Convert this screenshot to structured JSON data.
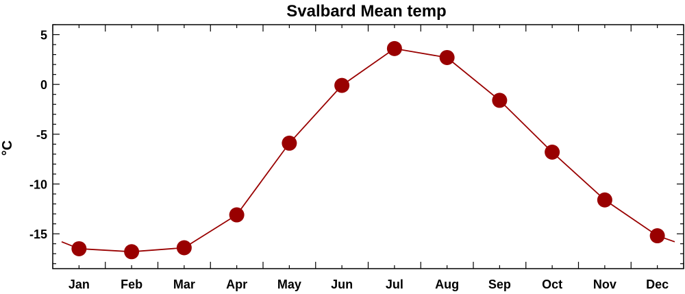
{
  "chart_data": {
    "type": "line",
    "title": "Svalbard Mean temp",
    "xlabel": "",
    "ylabel": "°C",
    "categories": [
      "Jan",
      "Feb",
      "Mar",
      "Apr",
      "May",
      "Jun",
      "Jul",
      "Aug",
      "Sep",
      "Oct",
      "Nov",
      "Dec"
    ],
    "series": [
      {
        "values": [
          -16.5,
          -16.8,
          -16.4,
          -13.1,
          -5.9,
          -0.1,
          3.6,
          2.7,
          -1.6,
          -6.8,
          -11.6,
          -15.2
        ],
        "color": "#990000",
        "marker": "circle"
      }
    ],
    "line_extension": {
      "before": -15.8,
      "after": -15.8
    },
    "ylim": [
      -18.5,
      6
    ],
    "yticks": [
      5,
      0,
      -5,
      -10,
      -15
    ],
    "grid": false,
    "legend": "none"
  }
}
